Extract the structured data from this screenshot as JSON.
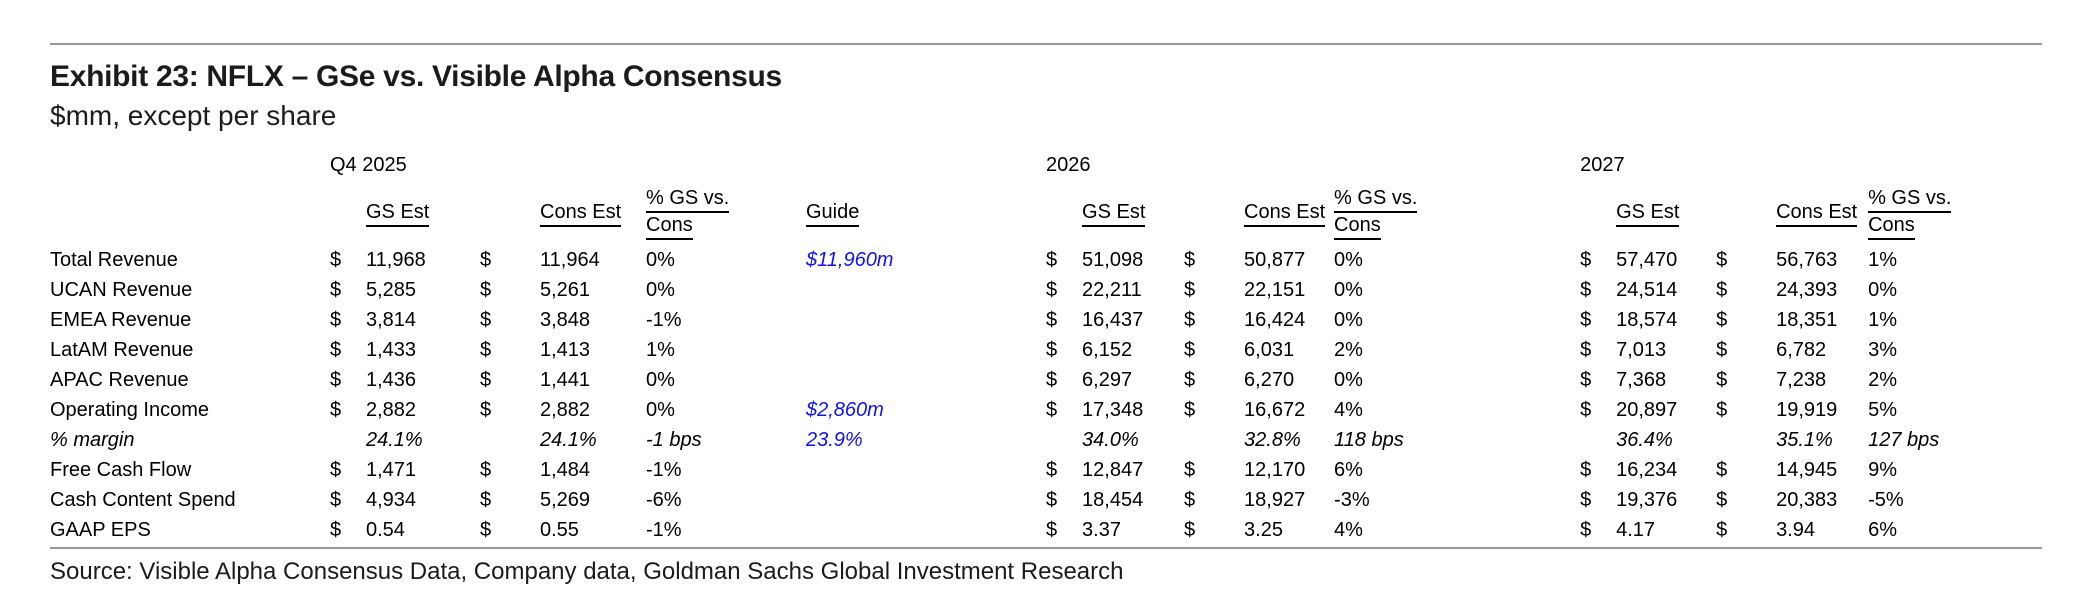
{
  "page": {
    "title": "Exhibit 23: NFLX – GSe vs. Visible Alpha Consensus",
    "subtitle": "$mm, except per share",
    "source_line": "Source: Visible Alpha Consensus Data, Company data, Goldman Sachs Global Investment Research"
  },
  "colors": {
    "guide_blue": "#1414ea",
    "text_black": "#000000",
    "rule_gray": "#9a9a9a"
  },
  "table": {
    "currency_symbol": "$",
    "period_groups": [
      {
        "label": "Q4 2025"
      },
      {
        "label": "2026"
      },
      {
        "label": "2027"
      }
    ],
    "column_headers": {
      "gs_est": "GS Est",
      "cons_est": "Cons Est",
      "pct_line1": "% GS vs.",
      "pct_line2": "Cons",
      "guide": "Guide"
    },
    "rows": [
      {
        "label": "Total Revenue",
        "style": "bold",
        "indent": false,
        "dollars": true,
        "q4_gs": "11,968",
        "q4_cons": "11,964",
        "q4_pct": "0%",
        "guide": "$11,960m",
        "y26_gs": "51,098",
        "y26_cons": "50,877",
        "y26_pct": "0%",
        "y27_gs": "57,470",
        "y27_cons": "56,763",
        "y27_pct": "1%"
      },
      {
        "label": "UCAN Revenue",
        "style": "normal",
        "indent": true,
        "dollars": true,
        "q4_gs": "5,285",
        "q4_cons": "5,261",
        "q4_pct": "0%",
        "guide": "",
        "y26_gs": "22,211",
        "y26_cons": "22,151",
        "y26_pct": "0%",
        "y27_gs": "24,514",
        "y27_cons": "24,393",
        "y27_pct": "0%"
      },
      {
        "label": "EMEA Revenue",
        "style": "normal",
        "indent": true,
        "dollars": true,
        "q4_gs": "3,814",
        "q4_cons": "3,848",
        "q4_pct": "-1%",
        "guide": "",
        "y26_gs": "16,437",
        "y26_cons": "16,424",
        "y26_pct": "0%",
        "y27_gs": "18,574",
        "y27_cons": "18,351",
        "y27_pct": "1%"
      },
      {
        "label": "LatAM Revenue",
        "style": "normal",
        "indent": true,
        "dollars": true,
        "q4_gs": "1,433",
        "q4_cons": "1,413",
        "q4_pct": "1%",
        "guide": "",
        "y26_gs": "6,152",
        "y26_cons": "6,031",
        "y26_pct": "2%",
        "y27_gs": "7,013",
        "y27_cons": "6,782",
        "y27_pct": "3%"
      },
      {
        "label": "APAC Revenue",
        "style": "normal",
        "indent": true,
        "dollars": true,
        "q4_gs": "1,436",
        "q4_cons": "1,441",
        "q4_pct": "0%",
        "guide": "",
        "y26_gs": "6,297",
        "y26_cons": "6,270",
        "y26_pct": "0%",
        "y27_gs": "7,368",
        "y27_cons": "7,238",
        "y27_pct": "2%"
      },
      {
        "label": "Operating Income",
        "style": "normal",
        "indent": false,
        "dollars": true,
        "q4_gs": "2,882",
        "q4_cons": "2,882",
        "q4_pct": "0%",
        "guide": "$2,860m",
        "y26_gs": "17,348",
        "y26_cons": "16,672",
        "y26_pct": "4%",
        "y27_gs": "20,897",
        "y27_cons": "19,919",
        "y27_pct": "5%"
      },
      {
        "label": "% margin",
        "style": "italic",
        "indent": false,
        "dollars": false,
        "q4_gs": "24.1%",
        "q4_cons": "24.1%",
        "q4_pct": "-1 bps",
        "guide": "23.9%",
        "y26_gs": "34.0%",
        "y26_cons": "32.8%",
        "y26_pct": "118 bps",
        "y27_gs": "36.4%",
        "y27_cons": "35.1%",
        "y27_pct": "127 bps"
      },
      {
        "label": "Free Cash Flow",
        "style": "normal",
        "indent": false,
        "dollars": true,
        "q4_gs": "1,471",
        "q4_cons": "1,484",
        "q4_pct": "-1%",
        "guide": "",
        "y26_gs": "12,847",
        "y26_cons": "12,170",
        "y26_pct": "6%",
        "y27_gs": "16,234",
        "y27_cons": "14,945",
        "y27_pct": "9%"
      },
      {
        "label": "Cash Content Spend",
        "style": "normal",
        "indent": false,
        "dollars": true,
        "q4_gs": "4,934",
        "q4_cons": "5,269",
        "q4_pct": "-6%",
        "guide": "",
        "y26_gs": "18,454",
        "y26_cons": "18,927",
        "y26_pct": "-3%",
        "y27_gs": "19,376",
        "y27_cons": "20,383",
        "y27_pct": "-5%"
      },
      {
        "label": "GAAP EPS",
        "style": "normal",
        "indent": false,
        "dollars": true,
        "q4_gs": "0.54",
        "q4_cons": "0.55",
        "q4_pct": "-1%",
        "guide": "",
        "y26_gs": "3.37",
        "y26_cons": "3.25",
        "y26_pct": "4%",
        "y27_gs": "4.17",
        "y27_cons": "3.94",
        "y27_pct": "6%"
      }
    ]
  }
}
